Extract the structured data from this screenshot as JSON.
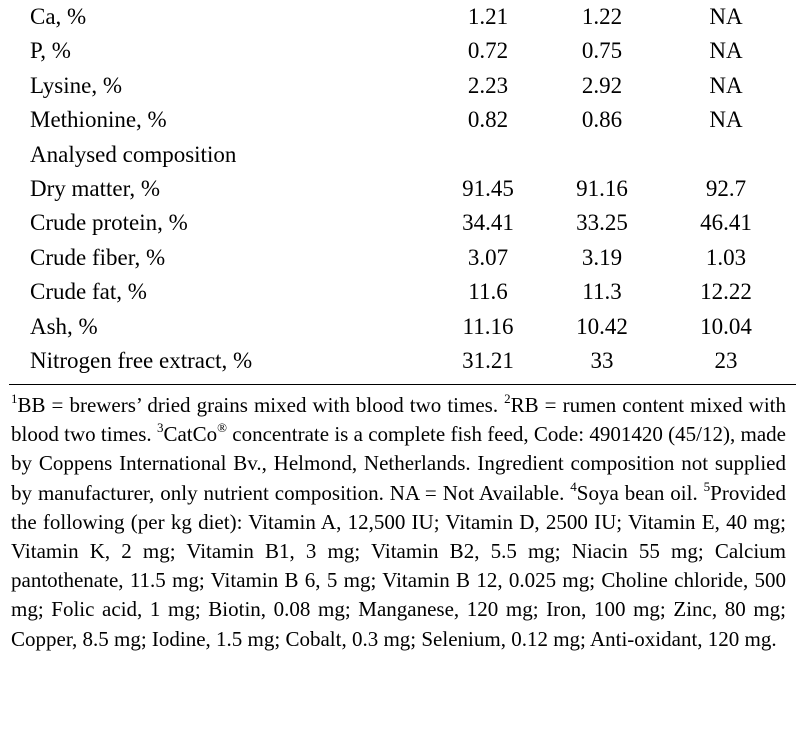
{
  "table": {
    "rows": [
      {
        "label": "Ca, %",
        "values": [
          "1.21",
          "1.22",
          "NA"
        ]
      },
      {
        "label": "P, %",
        "values": [
          "0.72",
          "0.75",
          "NA"
        ]
      },
      {
        "label": "Lysine, %",
        "values": [
          "2.23",
          "2.92",
          "NA"
        ]
      },
      {
        "label": "Methionine, %",
        "values": [
          "0.82",
          "0.86",
          "NA"
        ]
      },
      {
        "label": "Analysed composition",
        "values": [
          "",
          "",
          ""
        ]
      },
      {
        "label": "Dry matter, %",
        "values": [
          "91.45",
          "91.16",
          "92.7"
        ]
      },
      {
        "label": "Crude protein, %",
        "values": [
          "34.41",
          "33.25",
          "46.41"
        ]
      },
      {
        "label": "Crude fiber, %",
        "values": [
          "3.07",
          "3.19",
          "1.03"
        ]
      },
      {
        "label": "Crude fat, %",
        "values": [
          "11.6",
          "11.3",
          "12.22"
        ]
      },
      {
        "label": "Ash, %",
        "values": [
          "11.16",
          "10.42",
          "10.04"
        ]
      },
      {
        "label": "Nitrogen free extract, %",
        "values": [
          "31.21",
          "33",
          "23"
        ]
      }
    ]
  },
  "footnotes": {
    "n1_mark": "1",
    "n1_text": "BB = brewers’ dried grains mixed with blood two times. ",
    "n2_mark": "2",
    "n2_text": "RB = rumen content mixed with blood two times. ",
    "n3_mark": "3",
    "n3_brand": "CatCo",
    "n3_reg": "®",
    "n3_text": " concentrate is a complete fish feed, Code: 4901420 (45/12), made by Coppens International Bv., Helmond, Netherlands. Ingredient composition not supplied by manufacturer, only nutrient composition. NA = Not Available. ",
    "n4_mark": "4",
    "n4_text": "Soya bean oil. ",
    "n5_mark": "5",
    "n5_text": "Provided the following (per kg diet): Vitamin A, 12,500 IU; Vitamin D, 2500 IU; Vitamin E, 40 mg; Vitamin K, 2 mg; Vitamin B1, 3 mg; Vitamin B2, 5.5 mg; Niacin 55 mg; Calcium pantothenate, 11.5 mg; Vitamin B 6, 5 mg; Vitamin B 12, 0.025 mg; Choline chloride, 500 mg; Folic acid, 1 mg; Biotin, 0.08 mg; Manganese, 120 mg; Iron, 100 mg; Zinc, 80 mg; Copper, 8.5 mg; Iodine, 1.5 mg; Cobalt, 0.3 mg; Selenium, 0.12 mg; Anti-oxidant, 120 mg."
  }
}
